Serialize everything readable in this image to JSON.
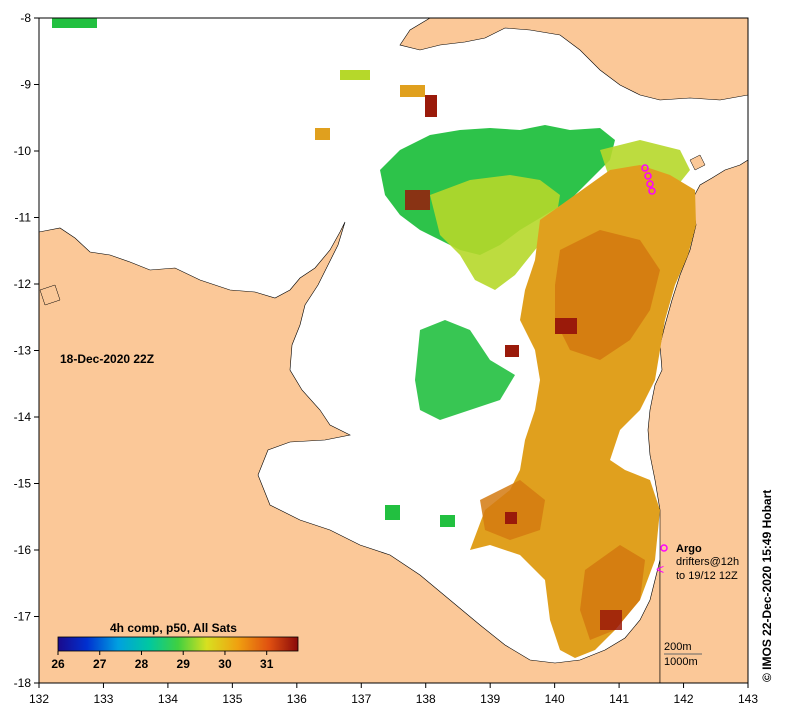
{
  "map": {
    "date_label": "18-Dec-2020 22Z",
    "colorbar_title": "4h comp, p50, All Sats",
    "colorbar_ticks": [
      "26",
      "27",
      "28",
      "29",
      "30",
      "31"
    ],
    "x_ticks": [
      "132",
      "133",
      "134",
      "135",
      "136",
      "137",
      "138",
      "139",
      "140",
      "141",
      "142",
      "143"
    ],
    "y_ticks": [
      "-8",
      "-9",
      "-10",
      "-11",
      "-12",
      "-13",
      "-14",
      "-15",
      "-16",
      "-17",
      "-18"
    ],
    "legend": {
      "argo": "Argo",
      "drifters_line1": "drifters@12h",
      "drifters_line2": "to 19/12 12Z",
      "depth_200": "200m",
      "depth_1000": "1000m"
    },
    "credit": "© IMOS 22-Dec-2020 15:49 Hobart",
    "colors": {
      "land": "#fbc898",
      "sst_cool": "#22c040",
      "sst_mid": "#b6d82a",
      "sst_warm": "#e0a01e",
      "sst_hot": "#d47a10",
      "sst_max": "#9a1a0a",
      "argo_marker": "#ff00ff"
    }
  }
}
